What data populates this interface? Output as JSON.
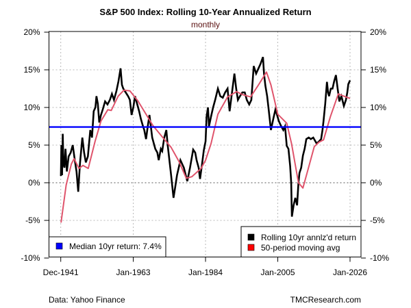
{
  "chart_data": {
    "type": "line",
    "title": "S&P 500 Index: Rolling 10-Year Annualized Return",
    "subtitle": "monthly",
    "xlabel": "",
    "ylabel": "",
    "xlim": [
      1941.92,
      2026.0
    ],
    "ylim": [
      -10,
      20
    ],
    "grid": true,
    "x_ticks": [
      {
        "value": 1941.92,
        "label": "Dec-1941"
      },
      {
        "value": 1963.0,
        "label": "Jan-1963"
      },
      {
        "value": 1984.0,
        "label": "Jan-1984"
      },
      {
        "value": 2005.0,
        "label": "Jan-2005"
      },
      {
        "value": 2026.0,
        "label": "Jan-2026"
      }
    ],
    "y_ticks": [
      {
        "value": 20,
        "label": "20%"
      },
      {
        "value": 15,
        "label": "15%"
      },
      {
        "value": 10,
        "label": "10%"
      },
      {
        "value": 5,
        "label": "5%"
      },
      {
        "value": 0,
        "label": "0%"
      },
      {
        "value": -5,
        "label": "-5%"
      },
      {
        "value": -10,
        "label": "-10%"
      }
    ],
    "series": [
      {
        "name": "Rolling 10yr annlz'd return",
        "color": "#000000",
        "x": [
          1941.95,
          1942.1,
          1942.3,
          1942.5,
          1942.7,
          1943.0,
          1943.3,
          1943.7,
          1944.2,
          1944.8,
          1945.4,
          1946.0,
          1946.5,
          1947.0,
          1947.5,
          1948.2,
          1948.7,
          1949.2,
          1949.8,
          1950.5,
          1951.0,
          1951.5,
          1952.0,
          1952.3,
          1952.7,
          1953.1,
          1953.6,
          1954.1,
          1954.8,
          1955.5,
          1956.2,
          1956.8,
          1957.4,
          1958.1,
          1958.7,
          1959.3,
          1959.7,
          1960.1,
          1960.8,
          1961.5,
          1962.0,
          1962.5,
          1963.0,
          1963.5,
          1964.1,
          1964.7,
          1965.2,
          1965.7,
          1966.2,
          1966.7,
          1967.2,
          1967.7,
          1968.5,
          1969.4,
          1970.0,
          1970.4,
          1971.0,
          1971.4,
          1972.0,
          1972.6,
          1973.0,
          1973.4,
          1974.0,
          1974.7,
          1975.2,
          1975.7,
          1976.2,
          1976.7,
          1977.7,
          1978.7,
          1979.5,
          1980.4,
          1981.0,
          1981.4,
          1982.0,
          1982.4,
          1983.0,
          1983.5,
          1984.0,
          1984.3,
          1984.7,
          1985.0,
          1985.6,
          1986.2,
          1986.8,
          1987.6,
          1988.3,
          1989.0,
          1989.7,
          1990.4,
          1991.0,
          1991.7,
          1992.4,
          1992.9,
          1993.4,
          1994.0,
          1994.7,
          1995.4,
          1996.0,
          1996.7,
          1997.3,
          1998.0,
          1998.7,
          1999.4,
          2000.0,
          2000.7,
          2001.0,
          2001.4,
          2001.9,
          2002.4,
          2003.0,
          2003.7,
          2004.3,
          2004.8,
          2005.3,
          2006.0,
          2006.6,
          2007.1,
          2007.6,
          2008.1,
          2008.6,
          2008.9,
          2009.1,
          2009.6,
          2010.1,
          2010.6,
          2011.0,
          2011.3,
          2011.8,
          2012.3,
          2012.8,
          2013.3,
          2014.0,
          2014.6,
          2015.3,
          2016.3,
          2017.0,
          2017.6,
          2018.0,
          2018.3,
          2018.8,
          2019.3,
          2019.6,
          2019.9,
          2020.4,
          2020.9,
          2021.4,
          2021.9,
          2022.4,
          2022.9,
          2023.5,
          2024.2,
          2024.8,
          2025.2,
          2025.5,
          2026.0
        ],
        "values": [
          0.9,
          5.0,
          1.0,
          6.5,
          2.5,
          2.0,
          4.5,
          1.5,
          3.5,
          4.0,
          5.0,
          3.0,
          1.5,
          -1.2,
          2.5,
          6.0,
          4.0,
          2.7,
          3.5,
          7.0,
          6.0,
          9.5,
          10.0,
          11.5,
          10.5,
          8.0,
          9.0,
          9.7,
          10.8,
          10.4,
          11.0,
          11.8,
          11.0,
          12.2,
          13.5,
          15.2,
          13.0,
          12.5,
          12.0,
          11.5,
          11.0,
          9.0,
          10.0,
          11.5,
          10.5,
          9.5,
          8.5,
          7.7,
          7.0,
          5.8,
          7.5,
          9.0,
          6.0,
          4.5,
          4.0,
          3.0,
          4.5,
          4.2,
          6.0,
          7.0,
          5.0,
          3.4,
          1.0,
          -2.0,
          -0.5,
          1.0,
          2.0,
          3.0,
          2.0,
          0.2,
          2.0,
          4.4,
          4.0,
          3.0,
          2.0,
          0.5,
          2.5,
          4.3,
          5.5,
          8.8,
          10.0,
          7.5,
          8.8,
          10.0,
          11.0,
          12.5,
          11.5,
          11.3,
          12.0,
          12.5,
          9.5,
          12.0,
          14.5,
          12.5,
          11.0,
          11.5,
          12.0,
          12.0,
          11.0,
          10.4,
          11.0,
          15.5,
          14.5,
          15.2,
          15.8,
          16.7,
          14.5,
          12.9,
          11.5,
          9.5,
          7.0,
          8.5,
          9.7,
          9.0,
          8.2,
          7.5,
          7.0,
          7.5,
          4.9,
          4.5,
          2.2,
          0.0,
          -4.5,
          -3.0,
          -2.0,
          -3.0,
          0.0,
          1.3,
          2.0,
          3.6,
          4.5,
          5.8,
          6.0,
          5.8,
          6.0,
          5.2,
          5.5,
          5.8,
          7.0,
          8.2,
          10.5,
          13.4,
          12.0,
          11.5,
          12.5,
          12.5,
          13.5,
          14.3,
          12.5,
          10.8,
          11.5,
          10.2,
          11.0,
          12.0,
          13.1,
          13.6
        ]
      },
      {
        "name": "50-period moving avg",
        "color": "#df536b",
        "x": [
          1942.0,
          1943.5,
          1945.0,
          1945.8,
          1947.2,
          1948.4,
          1949.9,
          1951.9,
          1953.6,
          1955.6,
          1956.6,
          1958.6,
          1960.3,
          1962.0,
          1964.3,
          1966.7,
          1968.7,
          1971.4,
          1974.0,
          1976.3,
          1978.4,
          1980.0,
          1982.7,
          1984.0,
          1985.6,
          1987.6,
          1990.4,
          1993.0,
          1994.8,
          1997.1,
          1999.4,
          2001.7,
          2003.0,
          2005.0,
          2007.6,
          2009.0,
          2011.0,
          2012.3,
          2014.0,
          2015.6,
          2017.0,
          2018.3,
          2020.3,
          2022.6,
          2024.2,
          2026.0
        ],
        "values": [
          -5.3,
          -0.3,
          2.5,
          3.2,
          1.9,
          2.3,
          1.9,
          5.5,
          8.2,
          9.7,
          9.6,
          11.5,
          12.3,
          12.2,
          10.9,
          9.1,
          7.6,
          6.1,
          4.7,
          2.8,
          0.6,
          0.8,
          1.9,
          3.0,
          5.2,
          9.1,
          11.4,
          12.1,
          11.7,
          11.4,
          13.0,
          14.7,
          13.0,
          9.1,
          7.9,
          5.2,
          0.0,
          -0.7,
          2.1,
          4.8,
          5.4,
          5.7,
          8.8,
          11.8,
          11.5,
          11.2
        ]
      }
    ],
    "reference_line": {
      "name": "Median 10yr return: 7.4%",
      "value": 7.4,
      "color": "#0000ff"
    },
    "legends": [
      {
        "placement": "bottom-left",
        "entries": [
          {
            "label": "Median 10yr return: 7.4%",
            "color": "#0000ff"
          }
        ]
      },
      {
        "placement": "bottom-right",
        "entries": [
          {
            "label": "Rolling 10yr annlz'd return",
            "color": "#000000"
          },
          {
            "label": "50-period moving avg",
            "color": "#ff0000"
          }
        ]
      }
    ]
  },
  "footer": {
    "source": "Data: Yahoo Finance",
    "credit": "TMCResearch.com"
  }
}
